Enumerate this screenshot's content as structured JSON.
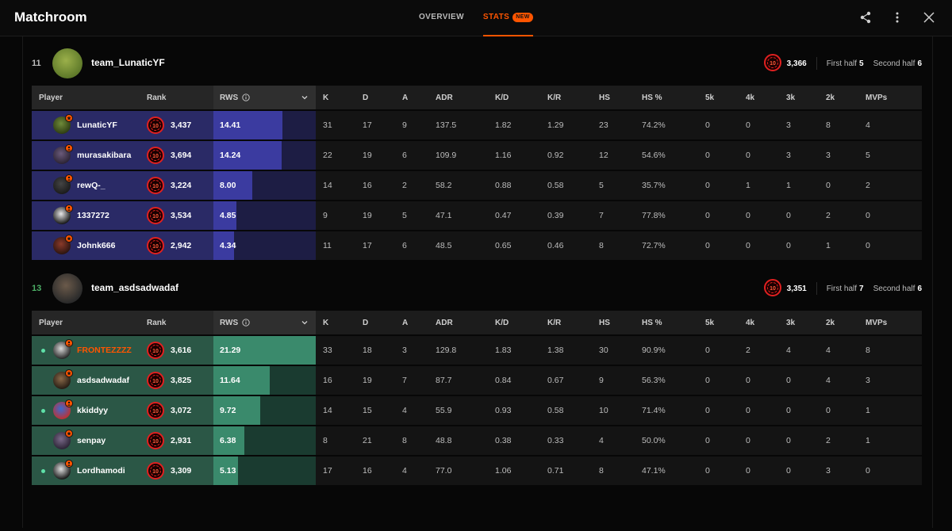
{
  "header": {
    "title": "Matchroom",
    "tabs": [
      {
        "label": "OVERVIEW",
        "active": false
      },
      {
        "label": "STATS",
        "active": true,
        "badge": "NEW"
      }
    ],
    "icons": [
      "share-icon",
      "more-vertical-icon",
      "close-icon"
    ]
  },
  "columns": {
    "player": "Player",
    "rank": "Rank",
    "rws": "RWS",
    "k": "K",
    "d": "D",
    "a": "A",
    "adr": "ADR",
    "kd": "K/D",
    "kr": "K/R",
    "hs": "HS",
    "hsp": "HS %",
    "k5": "5k",
    "k4": "4k",
    "k3": "3k",
    "k2": "2k",
    "mvps": "MVPs"
  },
  "colors": {
    "accent": "#ff5500",
    "team1_row": "#2a2a66",
    "team1_bar": "#3b3ba0",
    "team2_row": "#2b5746",
    "team2_bar": "#3a8a6c",
    "online_dot": "#5ee0a8",
    "win_score": "#4caf66"
  },
  "rws_max": 21.29,
  "teams": [
    {
      "score": "11",
      "name": "team_LunaticYF",
      "level": "10",
      "elo": "3,366",
      "first_half_label": "First half",
      "first_half": "5",
      "second_half_label": "Second half",
      "second_half": "6",
      "players": [
        {
          "name": "LunaticYF",
          "level": "10",
          "elo": "3,437",
          "rws": "14.41",
          "k": "31",
          "d": "17",
          "a": "9",
          "adr": "137.5",
          "kd": "1.82",
          "kr": "1.29",
          "hs": "23",
          "hsp": "74.2%",
          "k5": "0",
          "k4": "0",
          "k3": "3",
          "k2": "8",
          "mvps": "4",
          "online": false,
          "highlight": false,
          "premium": true
        },
        {
          "name": "murasakibara",
          "level": "10",
          "elo": "3,694",
          "rws": "14.24",
          "k": "22",
          "d": "19",
          "a": "6",
          "adr": "109.9",
          "kd": "1.16",
          "kr": "0.92",
          "hs": "12",
          "hsp": "54.6%",
          "k5": "0",
          "k4": "0",
          "k3": "3",
          "k2": "3",
          "mvps": "5",
          "online": false,
          "highlight": false,
          "premium": false
        },
        {
          "name": "rewQ-_",
          "level": "10",
          "elo": "3,224",
          "rws": "8.00",
          "k": "14",
          "d": "16",
          "a": "2",
          "adr": "58.2",
          "kd": "0.88",
          "kr": "0.58",
          "hs": "5",
          "hsp": "35.7%",
          "k5": "0",
          "k4": "1",
          "k3": "1",
          "k2": "0",
          "mvps": "2",
          "online": false,
          "highlight": false,
          "premium": false
        },
        {
          "name": "1337272",
          "level": "10",
          "elo": "3,534",
          "rws": "4.85",
          "k": "9",
          "d": "19",
          "a": "5",
          "adr": "47.1",
          "kd": "0.47",
          "kr": "0.39",
          "hs": "7",
          "hsp": "77.8%",
          "k5": "0",
          "k4": "0",
          "k3": "0",
          "k2": "2",
          "mvps": "0",
          "online": false,
          "highlight": false,
          "premium": false
        },
        {
          "name": "Johnk666",
          "level": "10",
          "elo": "2,942",
          "rws": "4.34",
          "k": "11",
          "d": "17",
          "a": "6",
          "adr": "48.5",
          "kd": "0.65",
          "kr": "0.46",
          "hs": "8",
          "hsp": "72.7%",
          "k5": "0",
          "k4": "0",
          "k3": "0",
          "k2": "1",
          "mvps": "0",
          "online": false,
          "highlight": false,
          "premium": true
        }
      ]
    },
    {
      "score": "13",
      "name": "team_asdsadwadaf",
      "level": "10",
      "elo": "3,351",
      "first_half_label": "First half",
      "first_half": "7",
      "second_half_label": "Second half",
      "second_half": "6",
      "players": [
        {
          "name": "FRONTEZZZZ",
          "level": "10",
          "elo": "3,616",
          "rws": "21.29",
          "k": "33",
          "d": "18",
          "a": "3",
          "adr": "129.8",
          "kd": "1.83",
          "kr": "1.38",
          "hs": "30",
          "hsp": "90.9%",
          "k5": "0",
          "k4": "2",
          "k3": "4",
          "k2": "4",
          "mvps": "8",
          "online": true,
          "highlight": true,
          "premium": false
        },
        {
          "name": "asdsadwadaf",
          "level": "10",
          "elo": "3,825",
          "rws": "11.64",
          "k": "16",
          "d": "19",
          "a": "7",
          "adr": "87.7",
          "kd": "0.84",
          "kr": "0.67",
          "hs": "9",
          "hsp": "56.3%",
          "k5": "0",
          "k4": "0",
          "k3": "0",
          "k2": "4",
          "mvps": "3",
          "online": false,
          "highlight": false,
          "premium": true
        },
        {
          "name": "kkiddyy",
          "level": "10",
          "elo": "3,072",
          "rws": "9.72",
          "k": "14",
          "d": "15",
          "a": "4",
          "adr": "55.9",
          "kd": "0.93",
          "kr": "0.58",
          "hs": "10",
          "hsp": "71.4%",
          "k5": "0",
          "k4": "0",
          "k3": "0",
          "k2": "0",
          "mvps": "1",
          "online": true,
          "highlight": false,
          "premium": false
        },
        {
          "name": "senpay",
          "level": "10",
          "elo": "2,931",
          "rws": "6.38",
          "k": "8",
          "d": "21",
          "a": "8",
          "adr": "48.8",
          "kd": "0.38",
          "kr": "0.33",
          "hs": "4",
          "hsp": "50.0%",
          "k5": "0",
          "k4": "0",
          "k3": "0",
          "k2": "2",
          "mvps": "1",
          "online": false,
          "highlight": false,
          "premium": true
        },
        {
          "name": "Lordhamodi",
          "level": "10",
          "elo": "3,309",
          "rws": "5.13",
          "k": "17",
          "d": "16",
          "a": "4",
          "adr": "77.0",
          "kd": "1.06",
          "kr": "0.71",
          "hs": "8",
          "hsp": "47.1%",
          "k5": "0",
          "k4": "0",
          "k3": "0",
          "k2": "3",
          "mvps": "0",
          "online": true,
          "highlight": false,
          "premium": false
        }
      ]
    }
  ]
}
